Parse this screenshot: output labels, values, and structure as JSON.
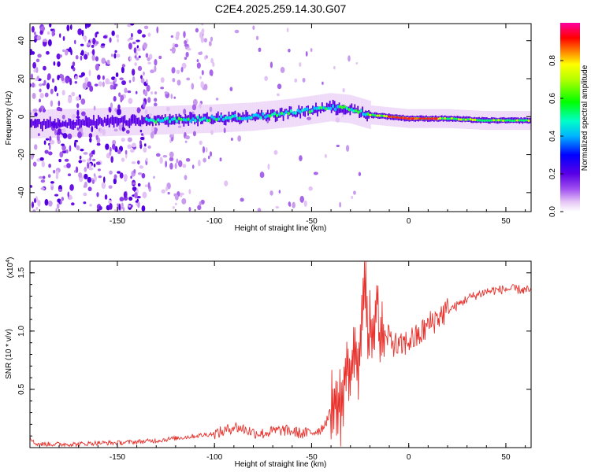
{
  "chart_data": [
    {
      "type": "heatmap",
      "title": "C2E4.2025.259.14.30.G07",
      "xlabel": "Height of straight line (km)",
      "ylabel": "Frequency (Hz)",
      "xlim": [
        -195,
        63
      ],
      "ylim": [
        -50,
        49
      ],
      "x_ticks": [
        -150,
        -100,
        -50,
        0,
        50
      ],
      "y_ticks": [
        -40,
        -20,
        0,
        20,
        40
      ],
      "colorbar": {
        "label": "Normalized spectral amplitude",
        "range": [
          0,
          1
        ],
        "ticks": [
          "0.0",
          "0.2",
          "0.4",
          "0.6",
          "0.8"
        ],
        "colormap": "rainbow (white-violet-blue-cyan-green-yellow-red-magenta)"
      },
      "ridge_track": {
        "description": "dominant spectral ridge frequency vs height",
        "x": [
          -195,
          -160,
          -130,
          -100,
          -80,
          -60,
          -40,
          -30,
          -20,
          -10,
          0,
          10,
          20,
          40,
          63
        ],
        "y": [
          -4,
          -3,
          -2,
          -1,
          0,
          2,
          5,
          4,
          1,
          0,
          -1,
          -1,
          -1,
          -2,
          -2
        ]
      },
      "grid": false
    },
    {
      "type": "line",
      "title": "",
      "xlabel": "Height of straight line (km)",
      "ylabel": "SNR (10 * v/v)",
      "multiplier_label": "(x10",
      "multiplier_exp": "4",
      "xlim": [
        -195,
        63
      ],
      "ylim": [
        0,
        1.6
      ],
      "x_ticks": [
        -150,
        -100,
        -50,
        0,
        50
      ],
      "y_ticks": [
        "0.5",
        "1.0",
        "1.5"
      ],
      "series": [
        {
          "color": "#e8322d",
          "x": [
            -195,
            -193,
            -190,
            -180,
            -170,
            -160,
            -150,
            -140,
            -130,
            -120,
            -110,
            -100,
            -95,
            -90,
            -85,
            -80,
            -75,
            -70,
            -65,
            -60,
            -55,
            -50,
            -45,
            -40,
            -38,
            -35,
            -32,
            -30,
            -28,
            -26,
            -24,
            -22,
            -21,
            -20,
            -18,
            -16,
            -15,
            -14,
            -12,
            -10,
            -8,
            -5,
            0,
            5,
            10,
            15,
            20,
            25,
            30,
            35,
            40,
            45,
            50,
            55,
            60,
            63
          ],
          "y": [
            0.1,
            0.04,
            0.03,
            0.03,
            0.03,
            0.04,
            0.04,
            0.05,
            0.06,
            0.08,
            0.1,
            0.12,
            0.14,
            0.18,
            0.16,
            0.13,
            0.12,
            0.14,
            0.15,
            0.14,
            0.12,
            0.13,
            0.16,
            0.3,
            0.45,
            0.35,
            0.75,
            0.6,
            0.95,
            0.7,
            1.2,
            1.57,
            0.8,
            1.05,
            0.95,
            1.35,
            0.85,
            1.0,
            0.9,
            0.95,
            0.9,
            0.85,
            0.92,
            0.95,
            1.05,
            1.12,
            1.18,
            1.22,
            1.28,
            1.31,
            1.34,
            1.35,
            1.36,
            1.36,
            1.35,
            1.35
          ]
        }
      ],
      "grid": false
    }
  ]
}
